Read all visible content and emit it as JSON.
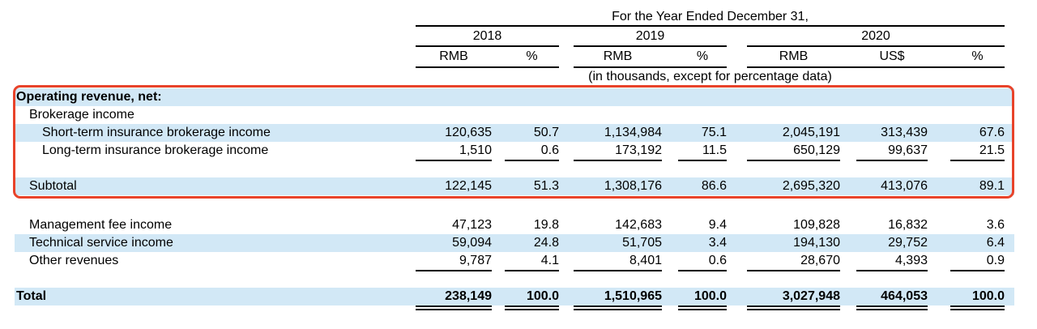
{
  "table": {
    "period_header": "For the Year Ended December 31,",
    "unit_note": "(in thousands, except for percentage data)",
    "year_groups": [
      {
        "label": "2018"
      },
      {
        "label": "2019"
      },
      {
        "label": "2020"
      }
    ],
    "columns": [
      "RMB",
      "%",
      "RMB",
      "%",
      "RMB",
      "US$",
      "%"
    ],
    "rows": [
      {
        "label": "Operating revenue, net:",
        "values": []
      },
      {
        "label": "Brokerage income",
        "values": []
      },
      {
        "label": "Short-term insurance brokerage income",
        "values": [
          "120,635",
          "50.7",
          "1,134,984",
          "75.1",
          "2,045,191",
          "313,439",
          "67.6"
        ]
      },
      {
        "label": "Long-term insurance brokerage income",
        "values": [
          "1,510",
          "0.6",
          "173,192",
          "11.5",
          "650,129",
          "99,637",
          "21.5"
        ]
      },
      {
        "label": "Subtotal",
        "values": [
          "122,145",
          "51.3",
          "1,308,176",
          "86.6",
          "2,695,320",
          "413,076",
          "89.1"
        ]
      },
      {
        "label": "Management fee income",
        "values": [
          "47,123",
          "19.8",
          "142,683",
          "9.4",
          "109,828",
          "16,832",
          "3.6"
        ]
      },
      {
        "label": "Technical service income",
        "values": [
          "59,094",
          "24.8",
          "51,705",
          "3.4",
          "194,130",
          "29,752",
          "6.4"
        ]
      },
      {
        "label": "Other revenues",
        "values": [
          "9,787",
          "4.1",
          "8,401",
          "0.6",
          "28,670",
          "4,393",
          "0.9"
        ]
      },
      {
        "label": "Total",
        "values": [
          "238,149",
          "100.0",
          "1,510,965",
          "100.0",
          "3,027,948",
          "464,053",
          "100.0"
        ]
      }
    ],
    "colors": {
      "row_highlight": "#d2e8f6",
      "annotation_box": "#e8432a"
    }
  }
}
